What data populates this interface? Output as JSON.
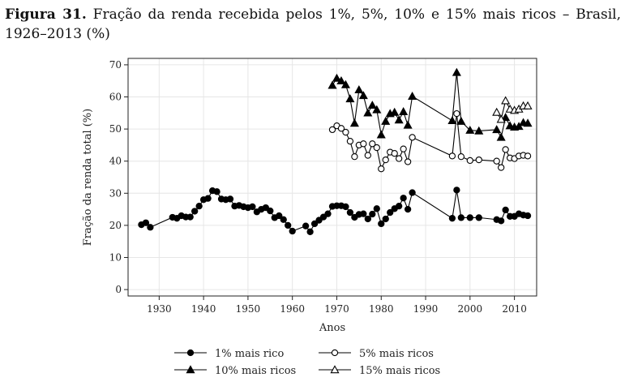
{
  "caption": {
    "label": "Figura 31.",
    "text": "Fração da renda recebida pelos 1%, 5%, 10% e 15% mais ricos – Brasil, 1926–2013 (%)"
  },
  "chart_data": {
    "type": "line",
    "xlabel": "Anos",
    "ylabel": "Fração da renda total (%)",
    "xlim": [
      1923,
      2015
    ],
    "ylim": [
      -2,
      72
    ],
    "xticks": [
      1930,
      1940,
      1950,
      1960,
      1970,
      1980,
      1990,
      2000,
      2010
    ],
    "yticks": [
      0,
      10,
      20,
      30,
      40,
      50,
      60,
      70
    ],
    "grid": true,
    "legend_position": "bottom",
    "series": [
      {
        "name": "1% mais rico",
        "marker": "filled-circle",
        "points": [
          [
            1926,
            20.2
          ],
          [
            1927,
            20.8
          ],
          [
            1928,
            19.4
          ],
          [
            1933,
            22.5
          ],
          [
            1934,
            22.2
          ],
          [
            1935,
            23.0
          ],
          [
            1936,
            22.6
          ],
          [
            1937,
            22.6
          ],
          [
            1938,
            24.4
          ],
          [
            1939,
            26.0
          ],
          [
            1940,
            28.0
          ],
          [
            1941,
            28.4
          ],
          [
            1942,
            30.8
          ],
          [
            1943,
            30.5
          ],
          [
            1944,
            28.2
          ],
          [
            1945,
            28.0
          ],
          [
            1946,
            28.2
          ],
          [
            1947,
            26.0
          ],
          [
            1948,
            26.2
          ],
          [
            1949,
            25.8
          ],
          [
            1950,
            25.5
          ],
          [
            1951,
            25.8
          ],
          [
            1952,
            24.2
          ],
          [
            1953,
            25.0
          ],
          [
            1954,
            25.5
          ],
          [
            1955,
            24.5
          ],
          [
            1956,
            22.4
          ],
          [
            1957,
            23.0
          ],
          [
            1958,
            21.8
          ],
          [
            1959,
            20.0
          ],
          [
            1960,
            18.2
          ],
          [
            1963,
            19.8
          ],
          [
            1964,
            18.0
          ],
          [
            1965,
            20.5
          ],
          [
            1966,
            21.6
          ],
          [
            1967,
            22.6
          ],
          [
            1968,
            23.6
          ],
          [
            1969,
            25.9
          ],
          [
            1970,
            26.1
          ],
          [
            1971,
            26.1
          ],
          [
            1972,
            25.8
          ],
          [
            1973,
            24.0
          ],
          [
            1974,
            22.5
          ],
          [
            1975,
            23.4
          ],
          [
            1976,
            23.6
          ],
          [
            1977,
            22.0
          ],
          [
            1978,
            23.5
          ],
          [
            1979,
            25.2
          ],
          [
            1980,
            20.5
          ],
          [
            1981,
            22.0
          ],
          [
            1982,
            24.0
          ],
          [
            1983,
            25.2
          ],
          [
            1984,
            26.0
          ],
          [
            1985,
            28.5
          ],
          [
            1986,
            25.0
          ],
          [
            1987,
            30.2
          ],
          [
            1996,
            22.2
          ],
          [
            1997,
            31.0
          ],
          [
            1998,
            22.4
          ],
          [
            2000,
            22.4
          ],
          [
            2002,
            22.4
          ],
          [
            2006,
            21.8
          ],
          [
            2007,
            21.4
          ],
          [
            2008,
            24.8
          ],
          [
            2009,
            22.8
          ],
          [
            2010,
            22.8
          ],
          [
            2011,
            23.6
          ],
          [
            2012,
            23.2
          ],
          [
            2013,
            23.0
          ]
        ]
      },
      {
        "name": "5% mais ricos",
        "marker": "open-circle",
        "points": [
          [
            1969,
            49.8
          ],
          [
            1970,
            51.0
          ],
          [
            1971,
            50.2
          ],
          [
            1972,
            49.0
          ],
          [
            1973,
            46.2
          ],
          [
            1974,
            41.4
          ],
          [
            1975,
            45.0
          ],
          [
            1976,
            45.4
          ],
          [
            1977,
            41.8
          ],
          [
            1978,
            45.4
          ],
          [
            1979,
            44.2
          ],
          [
            1980,
            37.6
          ],
          [
            1981,
            40.4
          ],
          [
            1982,
            42.8
          ],
          [
            1983,
            42.4
          ],
          [
            1984,
            40.8
          ],
          [
            1985,
            43.8
          ],
          [
            1986,
            39.8
          ],
          [
            1987,
            47.4
          ],
          [
            1996,
            41.6
          ],
          [
            1997,
            54.8
          ],
          [
            1998,
            41.4
          ],
          [
            2000,
            40.2
          ],
          [
            2002,
            40.4
          ],
          [
            2006,
            40.0
          ],
          [
            2007,
            38.0
          ],
          [
            2008,
            43.6
          ],
          [
            2009,
            41.0
          ],
          [
            2010,
            40.8
          ],
          [
            2011,
            41.6
          ],
          [
            2012,
            41.8
          ],
          [
            2013,
            41.6
          ]
        ]
      },
      {
        "name": "10% mais ricos",
        "marker": "filled-triangle",
        "points": [
          [
            1969,
            63.6
          ],
          [
            1970,
            65.8
          ],
          [
            1971,
            65.0
          ],
          [
            1972,
            63.8
          ],
          [
            1973,
            59.4
          ],
          [
            1974,
            51.8
          ],
          [
            1975,
            62.2
          ],
          [
            1976,
            60.4
          ],
          [
            1977,
            55.0
          ],
          [
            1978,
            57.4
          ],
          [
            1979,
            56.0
          ],
          [
            1980,
            48.2
          ],
          [
            1981,
            52.4
          ],
          [
            1982,
            54.8
          ],
          [
            1983,
            55.2
          ],
          [
            1984,
            52.8
          ],
          [
            1985,
            55.4
          ],
          [
            1986,
            51.2
          ],
          [
            1987,
            60.2
          ],
          [
            1996,
            52.6
          ],
          [
            1997,
            67.6
          ],
          [
            1998,
            52.4
          ],
          [
            2000,
            49.6
          ],
          [
            2002,
            49.4
          ],
          [
            2006,
            49.8
          ],
          [
            2007,
            47.4
          ],
          [
            2008,
            53.6
          ],
          [
            2009,
            51.0
          ],
          [
            2010,
            50.6
          ],
          [
            2011,
            50.8
          ],
          [
            2012,
            52.0
          ],
          [
            2013,
            51.8
          ]
        ]
      },
      {
        "name": "15% mais ricos",
        "marker": "open-triangle",
        "points": [
          [
            2006,
            55.2
          ],
          [
            2007,
            53.0
          ],
          [
            2008,
            58.8
          ],
          [
            2009,
            56.2
          ],
          [
            2010,
            55.8
          ],
          [
            2011,
            56.2
          ],
          [
            2012,
            57.2
          ],
          [
            2013,
            57.2
          ]
        ]
      }
    ]
  }
}
